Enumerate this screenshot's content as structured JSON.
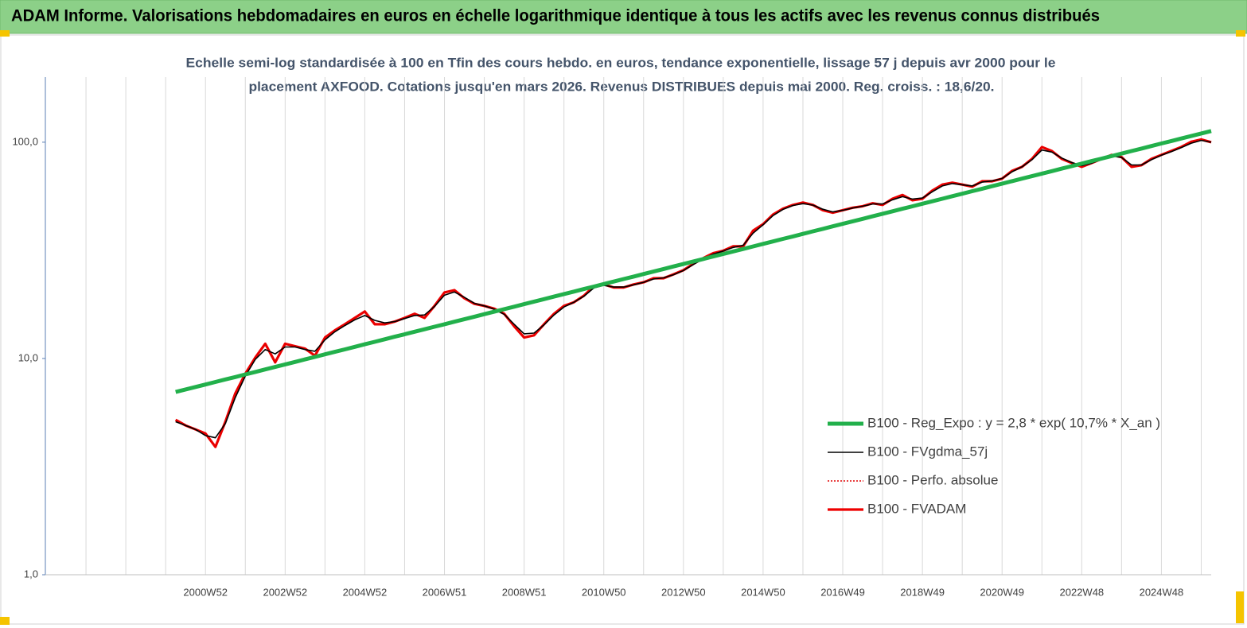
{
  "chart_data": {
    "type": "line",
    "title": "ADAM Informe. Valorisations hebdomadaires en euros en échelle logarithmique identique à tous les actifs avec les revenus connus distribués",
    "subtitle": [
      "Echelle semi-log standardisée à 100 en Tfin des cours hebdo. en euros, tendance exponentielle, lissage 57 j depuis avr 2000 pour le",
      "placement AXFOOD. Cotations jusqu'en mars 2026. Revenus DISTRIBUES depuis mai 2000.  Reg. croiss. : 18,6/20."
    ],
    "log_scale": true,
    "ylim": [
      1,
      200
    ],
    "yticks": [
      {
        "value": 1,
        "label": "1,0"
      },
      {
        "value": 10,
        "label": "10,0"
      },
      {
        "value": 100,
        "label": "100,0"
      }
    ],
    "xgrid": true,
    "legend": "right",
    "categories": [
      null,
      null,
      null,
      null,
      null,
      null,
      null,
      null,
      null,
      null,
      null,
      null,
      null,
      null,
      null,
      null,
      "2000W52",
      null,
      null,
      null,
      null,
      null,
      null,
      null,
      "2002W52",
      null,
      null,
      null,
      null,
      null,
      null,
      null,
      "2004W52",
      null,
      null,
      null,
      null,
      null,
      null,
      null,
      "2006W51",
      null,
      null,
      null,
      null,
      null,
      null,
      null,
      "2008W51",
      null,
      null,
      null,
      null,
      null,
      null,
      null,
      "2010W50",
      null,
      null,
      null,
      null,
      null,
      null,
      null,
      "2012W50",
      null,
      null,
      null,
      null,
      null,
      null,
      null,
      "2014W50",
      null,
      null,
      null,
      null,
      null,
      null,
      null,
      "2016W49",
      null,
      null,
      null,
      null,
      null,
      null,
      null,
      "2018W49",
      null,
      null,
      null,
      null,
      null,
      null,
      null,
      "2020W49",
      null,
      null,
      null,
      null,
      null,
      null,
      null,
      "2022W48",
      null,
      null,
      null,
      null,
      null,
      null,
      null,
      "2024W48",
      null,
      null,
      null,
      null,
      null
    ],
    "series": [
      {
        "name": "B100 - Reg_Expo : y = 2,8 * exp( 10,7% *  X_an )",
        "color": "#22b04b",
        "width": 5,
        "line_style": "solid",
        "values": [
          null,
          null,
          null,
          null,
          null,
          null,
          null,
          null,
          null,
          null,
          null,
          null,
          null,
          7.0,
          7.19,
          7.38,
          7.58,
          7.79,
          8.0,
          8.21,
          8.44,
          8.66,
          8.9,
          9.14,
          9.39,
          9.64,
          9.9,
          10.17,
          10.45,
          10.73,
          11.02,
          11.32,
          11.63,
          11.94,
          12.27,
          12.6,
          12.94,
          13.29,
          13.65,
          14.02,
          14.4,
          14.79,
          15.19,
          15.6,
          16.03,
          16.46,
          16.91,
          17.36,
          17.83,
          18.32,
          18.81,
          19.32,
          19.85,
          20.38,
          20.94,
          21.5,
          22.09,
          22.68,
          23.3,
          23.93,
          24.58,
          25.24,
          25.93,
          26.63,
          27.35,
          28.09,
          28.85,
          29.63,
          30.43,
          31.26,
          32.1,
          32.97,
          33.87,
          34.78,
          35.73,
          36.69,
          37.69,
          38.71,
          39.76,
          40.83,
          41.94,
          43.07,
          44.24,
          45.44,
          46.67,
          47.93,
          49.23,
          50.56,
          51.93,
          53.34,
          54.78,
          56.27,
          57.79,
          59.36,
          60.96,
          62.61,
          64.31,
          66.05,
          67.84,
          69.68,
          71.56,
          73.5,
          75.49,
          77.53,
          79.63,
          81.79,
          84.0,
          86.28,
          88.62,
          91.02,
          93.48,
          96.01,
          98.61,
          101.28,
          104.02,
          106.84,
          109.73,
          112.7
        ]
      },
      {
        "name": "B100 - FVgdma_57j",
        "color": "#000000",
        "width": 1.6,
        "line_style": "solid",
        "values": [
          null,
          null,
          null,
          null,
          null,
          null,
          null,
          null,
          null,
          null,
          null,
          null,
          null,
          5.1,
          4.9,
          4.7,
          4.4,
          4.3,
          5.0,
          6.6,
          8.3,
          9.9,
          11.0,
          10.5,
          11.3,
          11.3,
          11.0,
          10.8,
          12.2,
          13.3,
          14.2,
          15.1,
          15.8,
          15.0,
          14.6,
          14.8,
          15.3,
          15.8,
          15.9,
          17.4,
          19.6,
          20.3,
          19.2,
          18.0,
          17.5,
          16.9,
          16.0,
          14.4,
          13.0,
          13.1,
          14.3,
          15.9,
          17.3,
          18.2,
          19.4,
          21.2,
          21.8,
          21.4,
          21.4,
          21.9,
          22.5,
          23.3,
          23.6,
          24.4,
          25.5,
          27.2,
          28.9,
          30.4,
          31.4,
          32.6,
          33.4,
          38.0,
          41.5,
          45.8,
          48.9,
          51.0,
          52.0,
          51.2,
          49.0,
          47.6,
          48.4,
          49.6,
          50.6,
          51.8,
          51.8,
          54.2,
          56.0,
          54.6,
          55.2,
          59.0,
          62.8,
          64.4,
          63.6,
          62.8,
          65.4,
          66.2,
          68.0,
          73.0,
          77.0,
          83.0,
          92.0,
          90.0,
          84.5,
          80.5,
          78.0,
          80.0,
          83.5,
          86.5,
          85.0,
          78.5,
          78.5,
          83.0,
          87.0,
          90.5,
          94.5,
          99.0,
          102.0,
          100
        ]
      },
      {
        "name": "B100 - Perfo. absolue",
        "color": "#e00000",
        "width": 1.5,
        "line_style": "dotted",
        "values": [
          null,
          null,
          null,
          null,
          null,
          null,
          null,
          null,
          null,
          null,
          null,
          null,
          null,
          5.2,
          4.9,
          4.7,
          4.5,
          3.9,
          5.1,
          6.9,
          8.5,
          10.1,
          11.7,
          9.6,
          11.7,
          11.4,
          11.1,
          10.3,
          12.5,
          13.5,
          14.4,
          15.4,
          16.5,
          14.4,
          14.4,
          14.8,
          15.4,
          16.1,
          15.4,
          17.5,
          20.2,
          20.7,
          19,
          17.9,
          17.5,
          17,
          16.1,
          14.1,
          12.5,
          12.8,
          14.4,
          16.1,
          17.5,
          18.2,
          19.5,
          21.6,
          22,
          21.3,
          21.3,
          22,
          22.5,
          23.5,
          23.5,
          24.5,
          25.6,
          27.4,
          29.1,
          30.7,
          31.5,
          33,
          33,
          39,
          41.8,
          46.3,
          49.3,
          51.3,
          52.6,
          51.3,
          48.5,
          47.2,
          48.5,
          49.8,
          50.6,
          52.2,
          51.3,
          54.8,
          57,
          53.9,
          54.8,
          59.7,
          63.7,
          65,
          63.7,
          62.3,
          66,
          66,
          67.8,
          73.7,
          76.9,
          83.7,
          95,
          91,
          83.7,
          80.2,
          76.9,
          80.2,
          83.7,
          87.4,
          85.3,
          76.9,
          78.3,
          83.7,
          87.4,
          91.1,
          95.1,
          100.5,
          103,
          100
        ]
      },
      {
        "name": "B100 - FVADAM",
        "color": "#ee0000",
        "width": 3.2,
        "line_style": "solid",
        "values": [
          null,
          null,
          null,
          null,
          null,
          null,
          null,
          null,
          null,
          null,
          null,
          null,
          null,
          5.2,
          4.9,
          4.7,
          4.5,
          3.9,
          5.1,
          6.9,
          8.5,
          10.1,
          11.7,
          9.6,
          11.7,
          11.4,
          11.1,
          10.3,
          12.5,
          13.5,
          14.4,
          15.4,
          16.5,
          14.4,
          14.4,
          14.8,
          15.4,
          16.1,
          15.4,
          17.5,
          20.2,
          20.7,
          19,
          17.9,
          17.5,
          17,
          16.1,
          14.1,
          12.5,
          12.8,
          14.4,
          16.1,
          17.5,
          18.2,
          19.5,
          21.6,
          22,
          21.3,
          21.3,
          22,
          22.5,
          23.5,
          23.5,
          24.5,
          25.6,
          27.4,
          29.1,
          30.7,
          31.5,
          33,
          33,
          39,
          41.8,
          46.3,
          49.3,
          51.3,
          52.6,
          51.3,
          48.5,
          47.2,
          48.5,
          49.8,
          50.6,
          52.2,
          51.3,
          54.8,
          57,
          53.9,
          54.8,
          59.7,
          63.7,
          65,
          63.7,
          62.3,
          66,
          66,
          67.8,
          73.7,
          76.9,
          83.7,
          95,
          91,
          83.7,
          80.2,
          76.9,
          80.2,
          83.7,
          87.4,
          85.3,
          76.9,
          78.3,
          83.7,
          87.4,
          91.1,
          95.1,
          100.5,
          103,
          100
        ]
      }
    ]
  }
}
